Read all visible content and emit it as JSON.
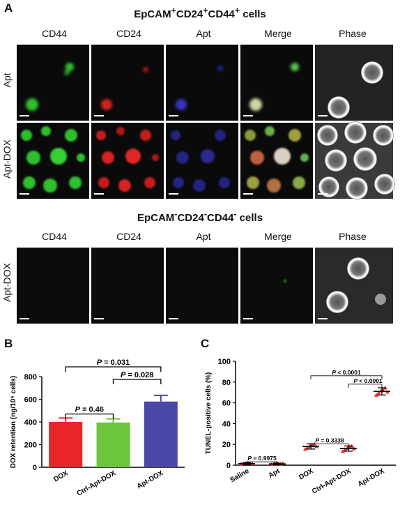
{
  "panel_a": {
    "letter": "A",
    "section1_title": {
      "pre": "EpCAM",
      "sup1": "+",
      "mid1": "CD24",
      "sup2": "+",
      "mid2": "CD44",
      "sup3": "+",
      "post": " cells"
    },
    "section2_title": {
      "pre": "EpCAM",
      "sup1": "-",
      "mid1": "CD24",
      "sup2": "-",
      "mid2": "CD44",
      "sup3": "-",
      "post": " cells"
    },
    "columns": [
      "CD44",
      "CD24",
      "Apt",
      "Merge",
      "Phase"
    ],
    "rows_section1": [
      "Apt",
      "Apt-DOX"
    ],
    "rows_section2": [
      "Apt-DOX"
    ],
    "colors": {
      "cd44": "#22c622",
      "cd24": "#e22222",
      "apt": "#3a3ae0"
    }
  },
  "panel_b": {
    "letter": "B",
    "chart_data": {
      "type": "bar",
      "categories": [
        "DOX",
        "Ctrl-Apt-DOX",
        "Apt-DOX"
      ],
      "values": [
        400,
        395,
        580
      ],
      "errors": [
        35,
        32,
        55
      ],
      "colors": [
        "#e8262a",
        "#6cc53c",
        "#4a49a8"
      ],
      "ylabel": "DOX retention (ng/10⁶ cells)",
      "ylim": [
        0,
        800
      ],
      "yticks": [
        0,
        200,
        400,
        600,
        800
      ],
      "annotations": [
        {
          "text": "P = 0.031",
          "from": 0,
          "to": 2
        },
        {
          "text": "P = 0.028",
          "from": 1,
          "to": 2
        },
        {
          "text": "P = 0.46",
          "from": 0,
          "to": 1
        }
      ]
    }
  },
  "panel_c": {
    "letter": "C",
    "chart_data": {
      "type": "scatter",
      "categories": [
        "Saline",
        "Apt",
        "DOX",
        "Ctrl-Apt-DOX",
        "Apt-DOX"
      ],
      "means": [
        1.5,
        1.2,
        18,
        16,
        71
      ],
      "sd": [
        0.8,
        0.7,
        2.5,
        2.5,
        3.5
      ],
      "points": [
        [
          0.8,
          1.2,
          1.6,
          2.0,
          1.4,
          1.1
        ],
        [
          0.6,
          1.0,
          1.4,
          1.3,
          0.9,
          1.5
        ],
        [
          15,
          16.5,
          18,
          19,
          20,
          17.5
        ],
        [
          13,
          14.5,
          16,
          17.5,
          18,
          15.5
        ],
        [
          67,
          69,
          71,
          72,
          74,
          70
        ]
      ],
      "point_color": "#e8262a",
      "ylabel": "TUNEL-positive cells (%)",
      "ylim": [
        0,
        100
      ],
      "yticks": [
        0,
        20,
        40,
        60,
        80,
        100
      ],
      "annotations": [
        {
          "text": "P < 0.0001",
          "from": 2,
          "to": 4
        },
        {
          "text": "P < 0.0001",
          "from": 3,
          "to": 4
        },
        {
          "text": "P = 0.3338",
          "from": 2,
          "to": 3
        },
        {
          "text": "P = 0.9975",
          "from": 0,
          "to": 1
        }
      ]
    }
  }
}
